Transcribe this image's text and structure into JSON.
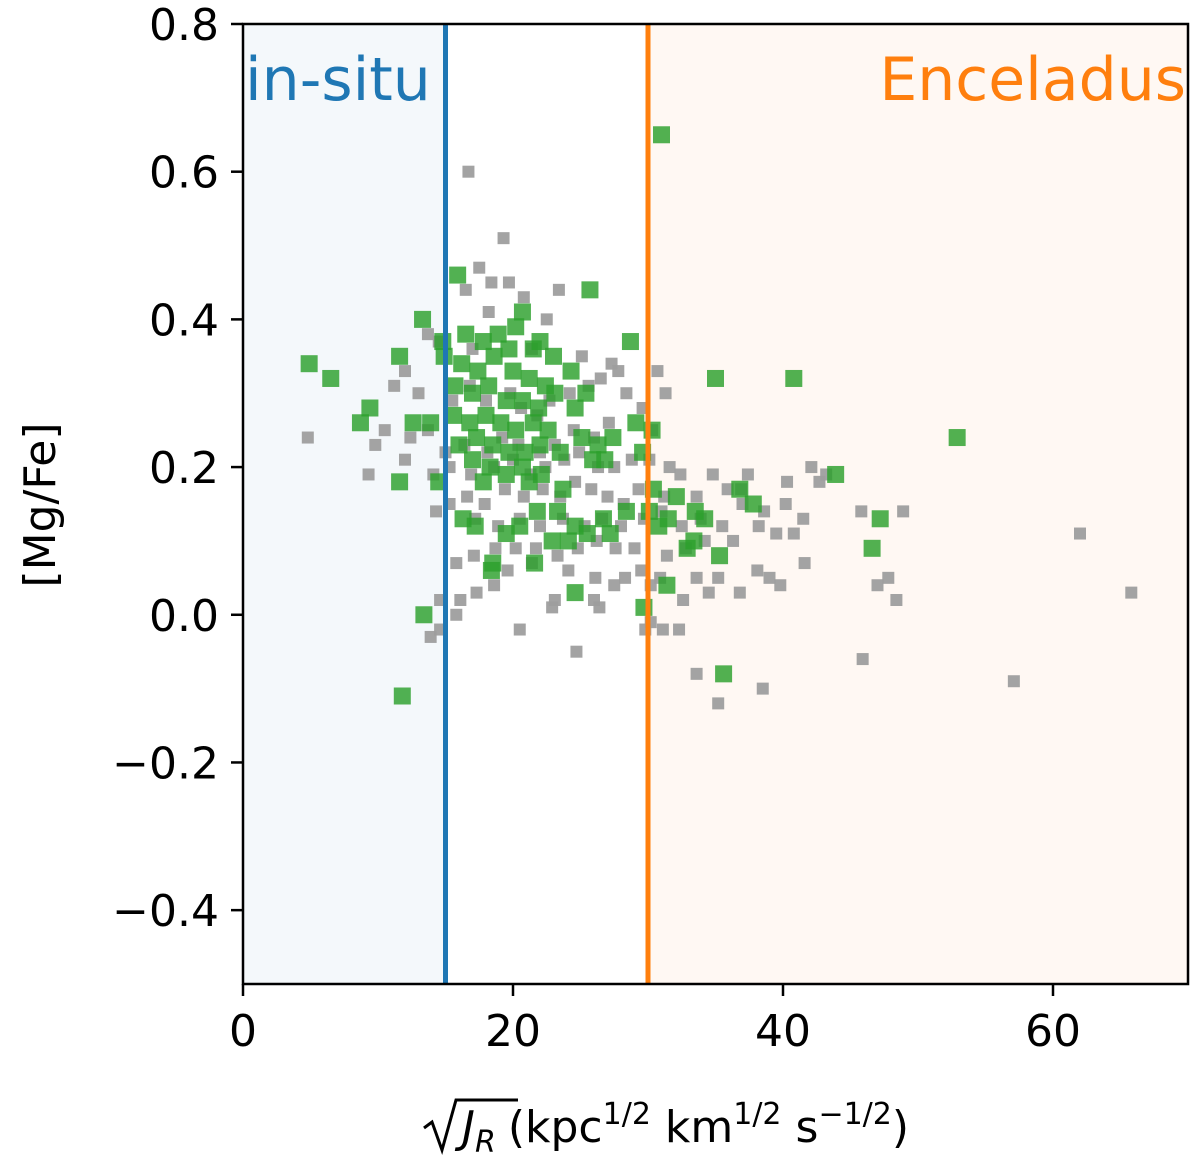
{
  "chart_data": {
    "type": "scatter",
    "title": "",
    "xlabel": {
      "pre": "(kpc",
      "exp1": "1/2",
      "mid1": " km",
      "exp2": "1/2",
      "mid2": " s",
      "exp3": "−1/2",
      "post": ")",
      "sqrt_symbol": "J",
      "sqrt_sub": "R"
    },
    "ylabel": "[Mg/Fe]",
    "xlim": [
      0,
      70
    ],
    "ylim": [
      -0.5,
      0.8
    ],
    "xticks": [
      0,
      20,
      40,
      60
    ],
    "xtick_labels": [
      "0",
      "20",
      "40",
      "60"
    ],
    "yticks": [
      -0.4,
      -0.2,
      0.0,
      0.2,
      0.4,
      0.6,
      0.8
    ],
    "ytick_labels": [
      "−0.4",
      "−0.2",
      "0.0",
      "0.2",
      "0.4",
      "0.6",
      "0.8"
    ],
    "regions": [
      {
        "label": "in-situ",
        "x_from": 0,
        "x_to": 15,
        "boundary": 15,
        "color": "#1f77b4",
        "label_anchor": "left"
      },
      {
        "label": "Enceladus",
        "x_from": 30,
        "x_to": 70,
        "boundary": 30,
        "color": "#ff7f0e",
        "label_anchor": "right"
      }
    ],
    "colors": {
      "gray_series": "#9e9e9e",
      "green_series": "#2ca02c"
    },
    "series": [
      {
        "marker": "square-small",
        "points": [
          [
            16.7,
            0.6
          ],
          [
            19.3,
            0.51
          ],
          [
            17.5,
            0.47
          ],
          [
            18.4,
            0.45
          ],
          [
            19.7,
            0.45
          ],
          [
            23.4,
            0.44
          ],
          [
            16.5,
            0.44
          ],
          [
            20.8,
            0.43
          ],
          [
            18.2,
            0.41
          ],
          [
            22.5,
            0.4
          ],
          [
            13.7,
            0.38
          ],
          [
            14.5,
            0.37
          ],
          [
            17.0,
            0.36
          ],
          [
            21.4,
            0.36
          ],
          [
            25.1,
            0.35
          ],
          [
            27.3,
            0.34
          ],
          [
            12.0,
            0.33
          ],
          [
            11.2,
            0.31
          ],
          [
            13.0,
            0.3
          ],
          [
            15.5,
            0.29
          ],
          [
            16.8,
            0.31
          ],
          [
            18.0,
            0.29
          ],
          [
            19.8,
            0.3
          ],
          [
            20.6,
            0.28
          ],
          [
            21.8,
            0.27
          ],
          [
            22.7,
            0.29
          ],
          [
            24.2,
            0.3
          ],
          [
            25.6,
            0.31
          ],
          [
            26.5,
            0.32
          ],
          [
            27.8,
            0.33
          ],
          [
            28.4,
            0.3
          ],
          [
            29.6,
            0.28
          ],
          [
            30.7,
            0.33
          ],
          [
            31.3,
            0.3
          ],
          [
            30.3,
            0.25
          ],
          [
            27.1,
            0.26
          ],
          [
            26.0,
            0.24
          ],
          [
            24.5,
            0.25
          ],
          [
            23.1,
            0.23
          ],
          [
            22.0,
            0.22
          ],
          [
            20.4,
            0.23
          ],
          [
            19.2,
            0.24
          ],
          [
            18.1,
            0.22
          ],
          [
            16.4,
            0.23
          ],
          [
            15.0,
            0.22
          ],
          [
            13.7,
            0.25
          ],
          [
            12.4,
            0.24
          ],
          [
            10.5,
            0.25
          ],
          [
            9.8,
            0.23
          ],
          [
            4.8,
            0.24
          ],
          [
            9.3,
            0.19
          ],
          [
            12.0,
            0.21
          ],
          [
            14.1,
            0.19
          ],
          [
            15.3,
            0.2
          ],
          [
            16.9,
            0.19
          ],
          [
            18.6,
            0.2
          ],
          [
            20.0,
            0.21
          ],
          [
            21.3,
            0.19
          ],
          [
            22.4,
            0.2
          ],
          [
            23.8,
            0.21
          ],
          [
            24.9,
            0.22
          ],
          [
            26.3,
            0.2
          ],
          [
            27.5,
            0.2
          ],
          [
            28.8,
            0.21
          ],
          [
            30.1,
            0.21
          ],
          [
            31.6,
            0.2
          ],
          [
            32.4,
            0.19
          ],
          [
            34.8,
            0.19
          ],
          [
            37.4,
            0.19
          ],
          [
            40.3,
            0.18
          ],
          [
            42.7,
            0.18
          ],
          [
            35.9,
            0.17
          ],
          [
            33.6,
            0.16
          ],
          [
            31.2,
            0.16
          ],
          [
            29.3,
            0.17
          ],
          [
            28.2,
            0.15
          ],
          [
            27.0,
            0.16
          ],
          [
            25.8,
            0.17
          ],
          [
            24.6,
            0.18
          ],
          [
            23.5,
            0.16
          ],
          [
            22.2,
            0.17
          ],
          [
            20.8,
            0.16
          ],
          [
            19.4,
            0.17
          ],
          [
            17.9,
            0.15
          ],
          [
            16.6,
            0.16
          ],
          [
            15.3,
            0.15
          ],
          [
            14.3,
            0.14
          ],
          [
            17.2,
            0.13
          ],
          [
            18.9,
            0.12
          ],
          [
            20.5,
            0.13
          ],
          [
            22.0,
            0.12
          ],
          [
            23.7,
            0.13
          ],
          [
            25.3,
            0.12
          ],
          [
            26.6,
            0.13
          ],
          [
            28.0,
            0.12
          ],
          [
            29.7,
            0.13
          ],
          [
            31.0,
            0.14
          ],
          [
            32.5,
            0.12
          ],
          [
            33.9,
            0.13
          ],
          [
            35.5,
            0.12
          ],
          [
            37.0,
            0.15
          ],
          [
            38.6,
            0.14
          ],
          [
            40.2,
            0.15
          ],
          [
            41.5,
            0.13
          ],
          [
            45.8,
            0.14
          ],
          [
            48.9,
            0.14
          ],
          [
            39.5,
            0.11
          ],
          [
            40.8,
            0.11
          ],
          [
            38.2,
            0.12
          ],
          [
            36.3,
            0.1
          ],
          [
            34.2,
            0.1
          ],
          [
            32.8,
            0.09
          ],
          [
            31.4,
            0.08
          ],
          [
            29.0,
            0.09
          ],
          [
            27.6,
            0.09
          ],
          [
            26.2,
            0.1
          ],
          [
            24.8,
            0.09
          ],
          [
            23.3,
            0.08
          ],
          [
            21.7,
            0.09
          ],
          [
            20.2,
            0.09
          ],
          [
            18.7,
            0.09
          ],
          [
            17.1,
            0.08
          ],
          [
            15.8,
            0.07
          ],
          [
            19.6,
            0.06
          ],
          [
            21.4,
            0.07
          ],
          [
            24.1,
            0.06
          ],
          [
            26.1,
            0.05
          ],
          [
            28.3,
            0.05
          ],
          [
            29.5,
            0.06
          ],
          [
            30.9,
            0.05
          ],
          [
            33.6,
            0.05
          ],
          [
            35.2,
            0.05
          ],
          [
            39.0,
            0.05
          ],
          [
            41.6,
            0.07
          ],
          [
            38.1,
            0.06
          ],
          [
            47.0,
            0.04
          ],
          [
            47.8,
            0.05
          ],
          [
            39.8,
            0.04
          ],
          [
            36.8,
            0.03
          ],
          [
            34.5,
            0.03
          ],
          [
            32.6,
            0.02
          ],
          [
            30.2,
            0.04
          ],
          [
            27.5,
            0.04
          ],
          [
            26.0,
            0.02
          ],
          [
            23.1,
            0.02
          ],
          [
            18.6,
            0.04
          ],
          [
            17.3,
            0.03
          ],
          [
            16.1,
            0.02
          ],
          [
            14.6,
            0.02
          ],
          [
            15.8,
            0.0
          ],
          [
            22.9,
            0.01
          ],
          [
            26.4,
            0.01
          ],
          [
            30.2,
            -0.01
          ],
          [
            31.1,
            -0.02
          ],
          [
            32.3,
            -0.02
          ],
          [
            29.8,
            -0.02
          ],
          [
            20.5,
            -0.02
          ],
          [
            13.9,
            -0.03
          ],
          [
            14.6,
            -0.02
          ],
          [
            24.7,
            -0.05
          ],
          [
            45.9,
            -0.06
          ],
          [
            57.1,
            -0.09
          ],
          [
            62.0,
            0.11
          ],
          [
            65.8,
            0.03
          ],
          [
            48.4,
            0.02
          ],
          [
            38.5,
            -0.1
          ],
          [
            35.2,
            -0.12
          ],
          [
            33.6,
            -0.08
          ],
          [
            42.1,
            0.2
          ],
          [
            43.2,
            0.19
          ],
          [
            36.9,
            0.17
          ]
        ]
      },
      {
        "marker": "square-large",
        "points": [
          [
            31.0,
            0.65
          ],
          [
            15.9,
            0.46
          ],
          [
            25.7,
            0.44
          ],
          [
            20.7,
            0.41
          ],
          [
            13.3,
            0.4
          ],
          [
            20.2,
            0.39
          ],
          [
            18.9,
            0.38
          ],
          [
            16.5,
            0.38
          ],
          [
            14.8,
            0.37
          ],
          [
            17.8,
            0.37
          ],
          [
            22.0,
            0.37
          ],
          [
            28.7,
            0.37
          ],
          [
            19.7,
            0.36
          ],
          [
            21.5,
            0.36
          ],
          [
            23.0,
            0.35
          ],
          [
            24.3,
            0.33
          ],
          [
            11.6,
            0.35
          ],
          [
            4.9,
            0.34
          ],
          [
            6.5,
            0.32
          ],
          [
            14.9,
            0.35
          ],
          [
            16.2,
            0.34
          ],
          [
            17.4,
            0.33
          ],
          [
            18.6,
            0.35
          ],
          [
            20.0,
            0.33
          ],
          [
            21.2,
            0.32
          ],
          [
            22.4,
            0.31
          ],
          [
            15.7,
            0.31
          ],
          [
            17.0,
            0.3
          ],
          [
            18.2,
            0.31
          ],
          [
            19.5,
            0.29
          ],
          [
            20.7,
            0.29
          ],
          [
            21.9,
            0.28
          ],
          [
            23.1,
            0.3
          ],
          [
            24.6,
            0.28
          ],
          [
            25.4,
            0.3
          ],
          [
            35.0,
            0.32
          ],
          [
            40.8,
            0.32
          ],
          [
            9.4,
            0.28
          ],
          [
            8.7,
            0.26
          ],
          [
            12.6,
            0.26
          ],
          [
            13.9,
            0.26
          ],
          [
            15.6,
            0.27
          ],
          [
            16.8,
            0.26
          ],
          [
            18.0,
            0.27
          ],
          [
            19.1,
            0.26
          ],
          [
            20.2,
            0.25
          ],
          [
            21.5,
            0.26
          ],
          [
            22.6,
            0.25
          ],
          [
            16.0,
            0.23
          ],
          [
            17.3,
            0.24
          ],
          [
            18.5,
            0.23
          ],
          [
            19.7,
            0.22
          ],
          [
            20.9,
            0.22
          ],
          [
            22.0,
            0.23
          ],
          [
            23.5,
            0.22
          ],
          [
            25.1,
            0.24
          ],
          [
            26.3,
            0.23
          ],
          [
            27.4,
            0.24
          ],
          [
            29.1,
            0.26
          ],
          [
            30.3,
            0.25
          ],
          [
            52.9,
            0.24
          ],
          [
            17.0,
            0.21
          ],
          [
            18.3,
            0.2
          ],
          [
            19.5,
            0.19
          ],
          [
            20.7,
            0.2
          ],
          [
            22.1,
            0.19
          ],
          [
            25.9,
            0.21
          ],
          [
            26.8,
            0.21
          ],
          [
            29.6,
            0.22
          ],
          [
            14.5,
            0.18
          ],
          [
            11.6,
            0.18
          ],
          [
            17.8,
            0.18
          ],
          [
            21.2,
            0.18
          ],
          [
            23.7,
            0.17
          ],
          [
            43.9,
            0.19
          ],
          [
            30.4,
            0.17
          ],
          [
            32.1,
            0.16
          ],
          [
            36.8,
            0.17
          ],
          [
            33.5,
            0.14
          ],
          [
            34.2,
            0.13
          ],
          [
            16.3,
            0.13
          ],
          [
            17.2,
            0.12
          ],
          [
            19.5,
            0.11
          ],
          [
            21.8,
            0.14
          ],
          [
            23.3,
            0.14
          ],
          [
            24.6,
            0.12
          ],
          [
            26.7,
            0.13
          ],
          [
            28.4,
            0.14
          ],
          [
            30.1,
            0.14
          ],
          [
            31.5,
            0.13
          ],
          [
            37.8,
            0.15
          ],
          [
            47.2,
            0.13
          ],
          [
            20.5,
            0.12
          ],
          [
            22.9,
            0.1
          ],
          [
            24.1,
            0.1
          ],
          [
            25.5,
            0.11
          ],
          [
            27.2,
            0.11
          ],
          [
            30.8,
            0.12
          ],
          [
            32.9,
            0.09
          ],
          [
            33.4,
            0.1
          ],
          [
            35.3,
            0.08
          ],
          [
            46.6,
            0.09
          ],
          [
            18.5,
            0.07
          ],
          [
            21.6,
            0.07
          ],
          [
            18.4,
            0.06
          ],
          [
            31.4,
            0.04
          ],
          [
            24.6,
            0.03
          ],
          [
            13.4,
            0.0
          ],
          [
            29.7,
            0.01
          ],
          [
            35.6,
            -0.08
          ],
          [
            11.8,
            -0.11
          ]
        ]
      }
    ]
  }
}
